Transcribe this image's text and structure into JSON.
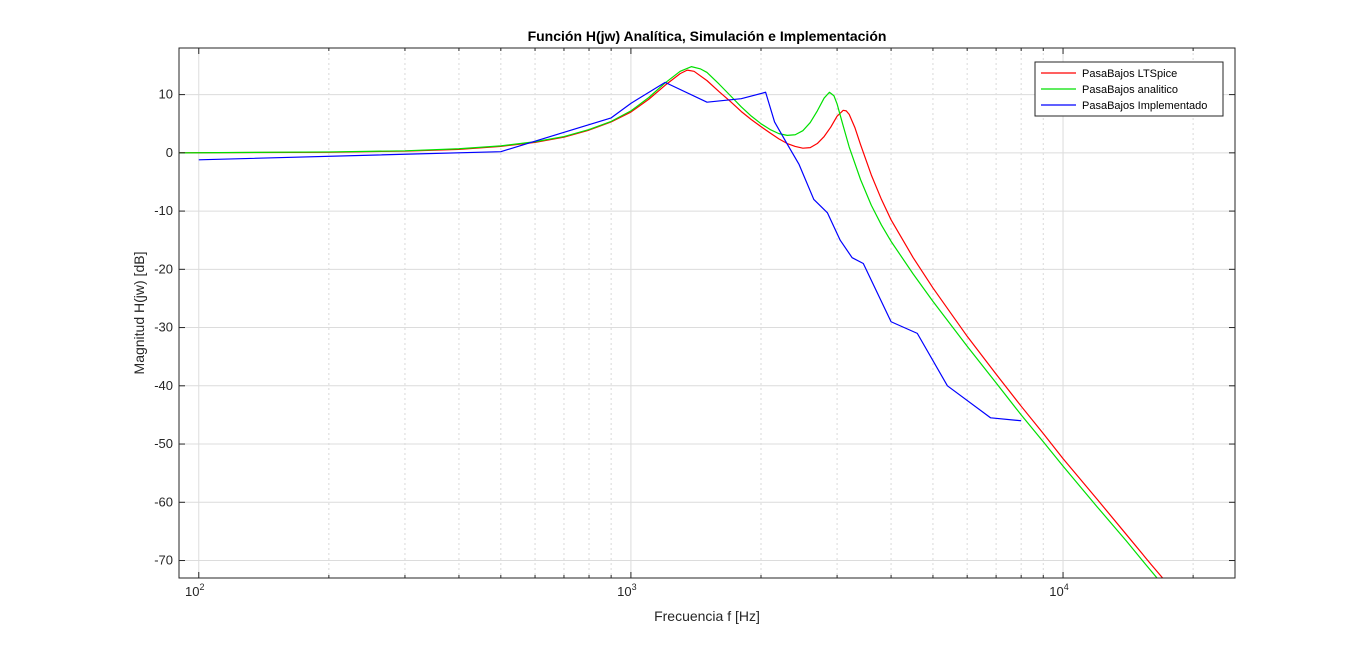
{
  "chart_data": {
    "type": "line",
    "title": "Función H(jw) Analítica, Simulación e Implementación",
    "xlabel": "Frecuencia f [Hz]",
    "ylabel": "Magnitud H(jw) [dB]",
    "xscale": "log",
    "xlim": [
      90,
      25000
    ],
    "ylim": [
      -73,
      18
    ],
    "x_major_ticks": [
      {
        "value": 100,
        "base": "10",
        "exp": "2"
      },
      {
        "value": 1000,
        "base": "10",
        "exp": "3"
      },
      {
        "value": 10000,
        "base": "10",
        "exp": "4"
      }
    ],
    "y_ticks": [
      10,
      0,
      -10,
      -20,
      -30,
      -40,
      -50,
      -60,
      -70
    ],
    "grid": true,
    "legend_position": "top-right",
    "series": [
      {
        "name": "PasaBajos LTSpice",
        "color": "#ff0000",
        "points": [
          [
            90,
            0.0
          ],
          [
            100,
            0.02
          ],
          [
            200,
            0.1
          ],
          [
            300,
            0.3
          ],
          [
            400,
            0.6
          ],
          [
            500,
            1.1
          ],
          [
            600,
            1.8
          ],
          [
            700,
            2.7
          ],
          [
            800,
            3.9
          ],
          [
            900,
            5.3
          ],
          [
            1000,
            7.0
          ],
          [
            1100,
            9.2
          ],
          [
            1200,
            11.6
          ],
          [
            1300,
            13.6
          ],
          [
            1350,
            14.2
          ],
          [
            1400,
            14.0
          ],
          [
            1500,
            12.4
          ],
          [
            1600,
            10.5
          ],
          [
            1700,
            8.8
          ],
          [
            1800,
            7.1
          ],
          [
            1900,
            5.7
          ],
          [
            2000,
            4.5
          ],
          [
            2100,
            3.4
          ],
          [
            2200,
            2.4
          ],
          [
            2300,
            1.6
          ],
          [
            2400,
            1.1
          ],
          [
            2500,
            0.8
          ],
          [
            2600,
            0.9
          ],
          [
            2700,
            1.6
          ],
          [
            2800,
            2.8
          ],
          [
            2900,
            4.4
          ],
          [
            3000,
            6.3
          ],
          [
            3100,
            7.3
          ],
          [
            3150,
            7.2
          ],
          [
            3200,
            6.6
          ],
          [
            3300,
            4.3
          ],
          [
            3400,
            1.4
          ],
          [
            3600,
            -3.8
          ],
          [
            3800,
            -8.0
          ],
          [
            4000,
            -11.5
          ],
          [
            4500,
            -18.0
          ],
          [
            5000,
            -23.2
          ],
          [
            6000,
            -31.5
          ],
          [
            7000,
            -38.0
          ],
          [
            8000,
            -43.5
          ],
          [
            9000,
            -48.2
          ],
          [
            10000,
            -52.5
          ],
          [
            12000,
            -59.5
          ],
          [
            14000,
            -65.5
          ],
          [
            16000,
            -70.7
          ],
          [
            17000,
            -73.0
          ]
        ]
      },
      {
        "name": "PasaBajos analitico",
        "color": "#00e000",
        "points": [
          [
            90,
            0.0
          ],
          [
            100,
            0.02
          ],
          [
            200,
            0.15
          ],
          [
            300,
            0.35
          ],
          [
            400,
            0.7
          ],
          [
            500,
            1.2
          ],
          [
            600,
            1.9
          ],
          [
            700,
            2.8
          ],
          [
            800,
            4.0
          ],
          [
            900,
            5.4
          ],
          [
            1000,
            7.2
          ],
          [
            1100,
            9.5
          ],
          [
            1200,
            12.0
          ],
          [
            1300,
            14.0
          ],
          [
            1380,
            14.8
          ],
          [
            1450,
            14.4
          ],
          [
            1500,
            13.8
          ],
          [
            1600,
            11.8
          ],
          [
            1700,
            9.8
          ],
          [
            1800,
            7.9
          ],
          [
            1900,
            6.3
          ],
          [
            2000,
            5.0
          ],
          [
            2100,
            4.0
          ],
          [
            2200,
            3.3
          ],
          [
            2300,
            3.0
          ],
          [
            2400,
            3.1
          ],
          [
            2500,
            3.8
          ],
          [
            2600,
            5.2
          ],
          [
            2700,
            7.2
          ],
          [
            2800,
            9.4
          ],
          [
            2880,
            10.4
          ],
          [
            2950,
            9.8
          ],
          [
            3000,
            8.4
          ],
          [
            3100,
            4.6
          ],
          [
            3200,
            1.0
          ],
          [
            3400,
            -4.6
          ],
          [
            3600,
            -9.0
          ],
          [
            3800,
            -12.4
          ],
          [
            4000,
            -15.2
          ],
          [
            4500,
            -20.8
          ],
          [
            5000,
            -25.5
          ],
          [
            6000,
            -33.2
          ],
          [
            7000,
            -39.5
          ],
          [
            8000,
            -45.0
          ],
          [
            9000,
            -49.6
          ],
          [
            10000,
            -53.8
          ],
          [
            12000,
            -60.8
          ],
          [
            14000,
            -66.6
          ],
          [
            15500,
            -70.6
          ],
          [
            16500,
            -73.0
          ]
        ]
      },
      {
        "name": "PasaBajos Implementado",
        "color": "#0000ff",
        "points": [
          [
            100,
            -1.2
          ],
          [
            500,
            0.2
          ],
          [
            600,
            2.0
          ],
          [
            900,
            6.0
          ],
          [
            1000,
            8.5
          ],
          [
            1200,
            12.1
          ],
          [
            1500,
            8.7
          ],
          [
            1800,
            9.3
          ],
          [
            2050,
            10.4
          ],
          [
            2150,
            5.3
          ],
          [
            2300,
            1.5
          ],
          [
            2450,
            -2.0
          ],
          [
            2650,
            -8.0
          ],
          [
            2850,
            -10.3
          ],
          [
            3050,
            -15.0
          ],
          [
            3250,
            -18.0
          ],
          [
            3450,
            -19.0
          ],
          [
            4000,
            -29.0
          ],
          [
            4600,
            -31.0
          ],
          [
            5400,
            -40.0
          ],
          [
            6800,
            -45.5
          ],
          [
            8000,
            -46.0
          ]
        ]
      }
    ]
  }
}
